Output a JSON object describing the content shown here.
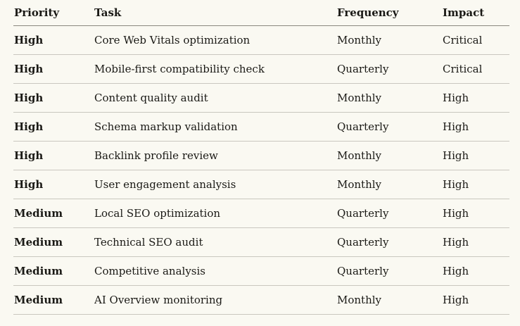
{
  "theme": {
    "background": "#faf9f2",
    "text": "#1a1915",
    "header_border": "#8a887f",
    "row_border": "#c9c7bf"
  },
  "table": {
    "columns": [
      {
        "key": "priority",
        "label": "Priority"
      },
      {
        "key": "task",
        "label": "Task"
      },
      {
        "key": "frequency",
        "label": "Frequency"
      },
      {
        "key": "impact",
        "label": "Impact"
      }
    ],
    "rows": [
      {
        "priority": "High",
        "task": "Core Web Vitals optimization",
        "frequency": "Monthly",
        "impact": "Critical"
      },
      {
        "priority": "High",
        "task": "Mobile-first compatibility check",
        "frequency": "Quarterly",
        "impact": "Critical"
      },
      {
        "priority": "High",
        "task": "Content quality audit",
        "frequency": "Monthly",
        "impact": "High"
      },
      {
        "priority": "High",
        "task": "Schema markup validation",
        "frequency": "Quarterly",
        "impact": "High"
      },
      {
        "priority": "High",
        "task": "Backlink profile review",
        "frequency": "Monthly",
        "impact": "High"
      },
      {
        "priority": "High",
        "task": "User engagement analysis",
        "frequency": "Monthly",
        "impact": "High"
      },
      {
        "priority": "Medium",
        "task": "Local SEO optimization",
        "frequency": "Quarterly",
        "impact": "High"
      },
      {
        "priority": "Medium",
        "task": "Technical SEO audit",
        "frequency": "Quarterly",
        "impact": "High"
      },
      {
        "priority": "Medium",
        "task": "Competitive analysis",
        "frequency": "Quarterly",
        "impact": "High"
      },
      {
        "priority": "Medium",
        "task": "AI Overview monitoring",
        "frequency": "Monthly",
        "impact": "High"
      }
    ]
  }
}
